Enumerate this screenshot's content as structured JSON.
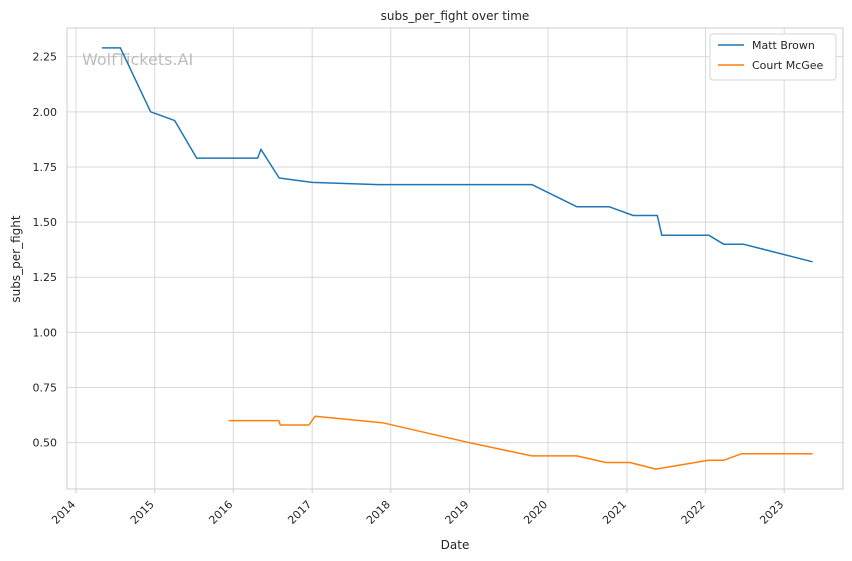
{
  "chart_data": {
    "type": "line",
    "title": "subs_per_fight over time",
    "xlabel": "Date",
    "ylabel": "subs_per_fight",
    "watermark": "WolfTickets.AI",
    "grid": true,
    "legend_position": "top-right",
    "xlim": [
      "2013-11-20",
      "2023-10-01"
    ],
    "ylim": [
      0.29,
      2.38
    ],
    "x_ticks": [
      "2014",
      "2015",
      "2016",
      "2017",
      "2018",
      "2019",
      "2020",
      "2021",
      "2022",
      "2023"
    ],
    "y_ticks": [
      "0.50",
      "0.75",
      "1.00",
      "1.25",
      "1.50",
      "1.75",
      "2.00",
      "2.25"
    ],
    "series": [
      {
        "name": "Matt Brown",
        "color": "#1f77b4",
        "points": [
          [
            "2014-05-01",
            2.29
          ],
          [
            "2014-07-26",
            2.29
          ],
          [
            "2014-12-13",
            2.0
          ],
          [
            "2015-04-04",
            1.96
          ],
          [
            "2015-07-15",
            1.79
          ],
          [
            "2016-04-23",
            1.79
          ],
          [
            "2016-05-08",
            1.83
          ],
          [
            "2016-08-01",
            1.7
          ],
          [
            "2016-12-31",
            1.68
          ],
          [
            "2017-11-04",
            1.67
          ],
          [
            "2019-10-18",
            1.67
          ],
          [
            "2020-05-13",
            1.57
          ],
          [
            "2020-10-10",
            1.57
          ],
          [
            "2021-01-30",
            1.53
          ],
          [
            "2021-05-22",
            1.53
          ],
          [
            "2021-06-12",
            1.44
          ],
          [
            "2022-01-17",
            1.44
          ],
          [
            "2022-03-26",
            1.4
          ],
          [
            "2022-06-25",
            1.4
          ],
          [
            "2023-05-13",
            1.32
          ]
        ]
      },
      {
        "name": "Court McGee",
        "color": "#ff7f0e",
        "points": [
          [
            "2015-12-10",
            0.6
          ],
          [
            "2016-07-30",
            0.6
          ],
          [
            "2016-08-06",
            0.58
          ],
          [
            "2016-12-17",
            0.58
          ],
          [
            "2017-01-15",
            0.62
          ],
          [
            "2017-11-25",
            0.59
          ],
          [
            "2019-01-01",
            0.5
          ],
          [
            "2019-10-18",
            0.44
          ],
          [
            "2020-05-13",
            0.44
          ],
          [
            "2020-09-26",
            0.41
          ],
          [
            "2021-01-15",
            0.41
          ],
          [
            "2021-05-15",
            0.38
          ],
          [
            "2022-01-15",
            0.42
          ],
          [
            "2022-03-26",
            0.42
          ],
          [
            "2022-06-18",
            0.45
          ],
          [
            "2023-05-13",
            0.45
          ]
        ]
      }
    ]
  }
}
